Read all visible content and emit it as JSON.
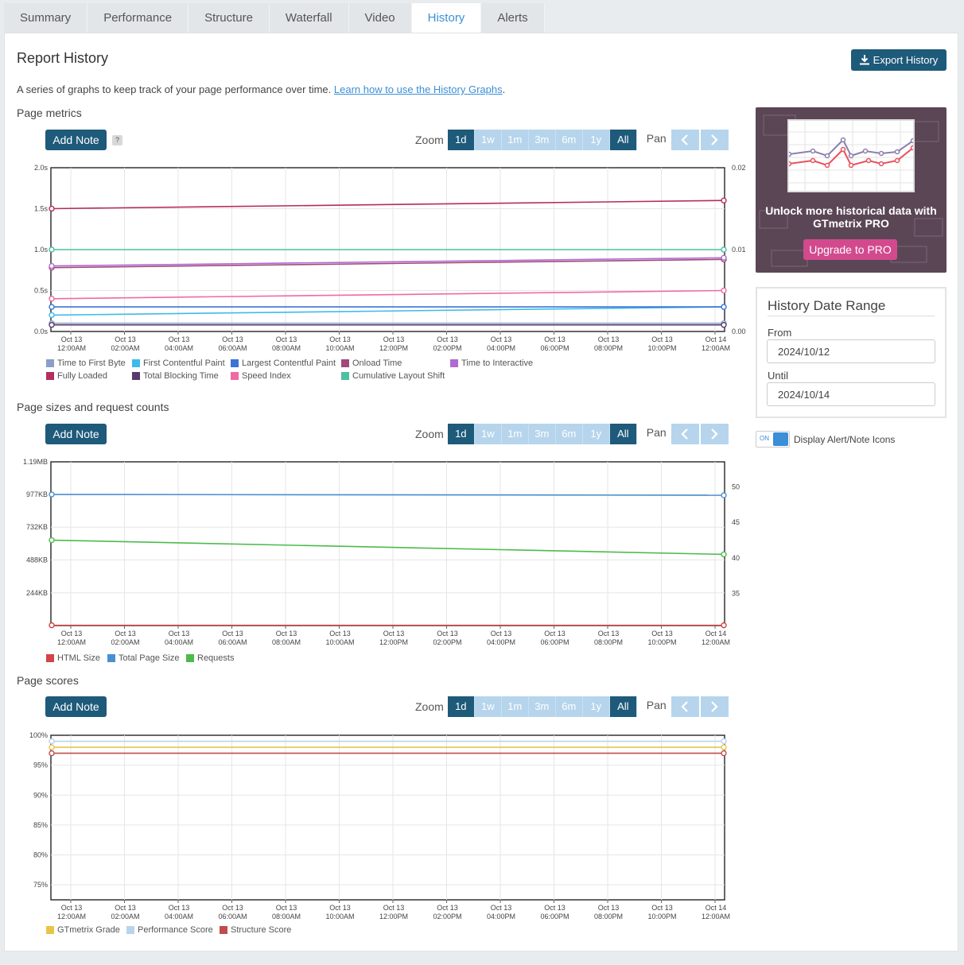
{
  "tabs": [
    {
      "label": "Summary"
    },
    {
      "label": "Performance"
    },
    {
      "label": "Structure"
    },
    {
      "label": "Waterfall"
    },
    {
      "label": "Video"
    },
    {
      "label": "History",
      "active": true
    },
    {
      "label": "Alerts"
    }
  ],
  "header": {
    "title": "Report History",
    "export_label": "Export History",
    "intro_text": "A series of graphs to keep track of your page performance over time. ",
    "intro_link": "Learn how to use the History Graphs",
    "intro_end": "."
  },
  "controls": {
    "add_note_label": "Add Note",
    "help": "?",
    "zoom_label": "Zoom",
    "pan_label": "Pan",
    "zoom_options": [
      "1d",
      "1w",
      "1m",
      "3m",
      "6m",
      "1y",
      "All"
    ],
    "zoom_selected": [
      "1d",
      "All"
    ]
  },
  "x_ticks": [
    [
      "Oct 13",
      "12:00AM"
    ],
    [
      "Oct 13",
      "02:00AM"
    ],
    [
      "Oct 13",
      "04:00AM"
    ],
    [
      "Oct 13",
      "06:00AM"
    ],
    [
      "Oct 13",
      "08:00AM"
    ],
    [
      "Oct 13",
      "10:00AM"
    ],
    [
      "Oct 13",
      "12:00PM"
    ],
    [
      "Oct 13",
      "02:00PM"
    ],
    [
      "Oct 13",
      "04:00PM"
    ],
    [
      "Oct 13",
      "06:00PM"
    ],
    [
      "Oct 13",
      "08:00PM"
    ],
    [
      "Oct 13",
      "10:00PM"
    ],
    [
      "Oct 14",
      "12:00AM"
    ]
  ],
  "chart_data": [
    {
      "type": "line",
      "title": "Page metrics",
      "y_left_ticks": [
        "0.0s",
        "0.5s",
        "1.0s",
        "1.5s",
        "2.0s"
      ],
      "y_left_range": [
        0,
        2
      ],
      "y_right_ticks": [
        "0.00",
        "0.01",
        "0.02"
      ],
      "y_right_range": [
        0,
        0.02
      ],
      "series": [
        {
          "name": "Time to First Byte",
          "color": "#8a9fc8",
          "values": [
            0.1,
            0.1
          ],
          "axis": "left"
        },
        {
          "name": "First Contentful Paint",
          "color": "#3ebbe8",
          "values": [
            0.2,
            0.3
          ],
          "axis": "left"
        },
        {
          "name": "Largest Contentful Paint",
          "color": "#3b73d6",
          "values": [
            0.3,
            0.3
          ],
          "axis": "left"
        },
        {
          "name": "Onload Time",
          "color": "#a04a7a",
          "values": [
            0.78,
            0.88
          ],
          "axis": "left"
        },
        {
          "name": "Time to Interactive",
          "color": "#b06ad2",
          "values": [
            0.8,
            0.9
          ],
          "axis": "left"
        },
        {
          "name": "Fully Loaded",
          "color": "#b52c5e",
          "values": [
            1.5,
            1.6
          ],
          "axis": "left"
        },
        {
          "name": "Total Blocking Time",
          "color": "#5a3a6a",
          "values": [
            0.08,
            0.08
          ],
          "axis": "left"
        },
        {
          "name": "Speed Index",
          "color": "#ef6aa3",
          "values": [
            0.4,
            0.5
          ],
          "axis": "left"
        },
        {
          "name": "Cumulative Layout Shift",
          "color": "#4cc0a0",
          "values": [
            0.01,
            0.01
          ],
          "axis": "right"
        }
      ]
    },
    {
      "type": "line",
      "title": "Page sizes and request counts",
      "y_left_ticks": [
        "244KB",
        "488KB",
        "732KB",
        "977KB",
        "1.19MB"
      ],
      "y_left_range": [
        0,
        1.19
      ],
      "y_right_ticks": [
        "35",
        "40",
        "45",
        "50"
      ],
      "y_right_range": [
        30.5,
        53.5
      ],
      "series": [
        {
          "name": "HTML Size",
          "color": "#d14545",
          "values": [
            0.0021,
            0.0021
          ],
          "axis": "left"
        },
        {
          "name": "Total Page Size",
          "color": "#4a90d0",
          "values": [
            0.953,
            0.947
          ],
          "axis": "left"
        },
        {
          "name": "Requests",
          "color": "#4cbb4c",
          "values": [
            42.5,
            40.5
          ],
          "axis": "right"
        }
      ]
    },
    {
      "type": "line",
      "title": "Page scores",
      "y_left_ticks": [
        "75%",
        "80%",
        "85%",
        "90%",
        "95%",
        "100%"
      ],
      "y_left_range": [
        72.5,
        100
      ],
      "series": [
        {
          "name": "GTmetrix Grade",
          "color": "#e8c54a",
          "values": [
            98,
            98
          ],
          "axis": "left"
        },
        {
          "name": "Performance Score",
          "color": "#b9d3ee",
          "values": [
            99,
            99
          ],
          "axis": "left"
        },
        {
          "name": "Structure Score",
          "color": "#c24b4b",
          "values": [
            97,
            97
          ],
          "axis": "left"
        }
      ]
    }
  ],
  "sidebar": {
    "pro_text": "Unlock more historical data with GTmetrix PRO",
    "upgrade_label": "Upgrade to PRO",
    "range_title": "History Date Range",
    "from_label": "From",
    "from_value": "2024/10/12",
    "until_label": "Until",
    "until_value": "2024/10/14",
    "toggle_state": "ON",
    "toggle_label": "Display Alert/Note Icons"
  },
  "colors": {
    "accent": "#1e5a7a",
    "tab_active_text": "#3a8fd6",
    "zoom_inactive": "#b6d5ec",
    "pro_bg": "#5b4656",
    "upgrade": "#d24a8d"
  }
}
